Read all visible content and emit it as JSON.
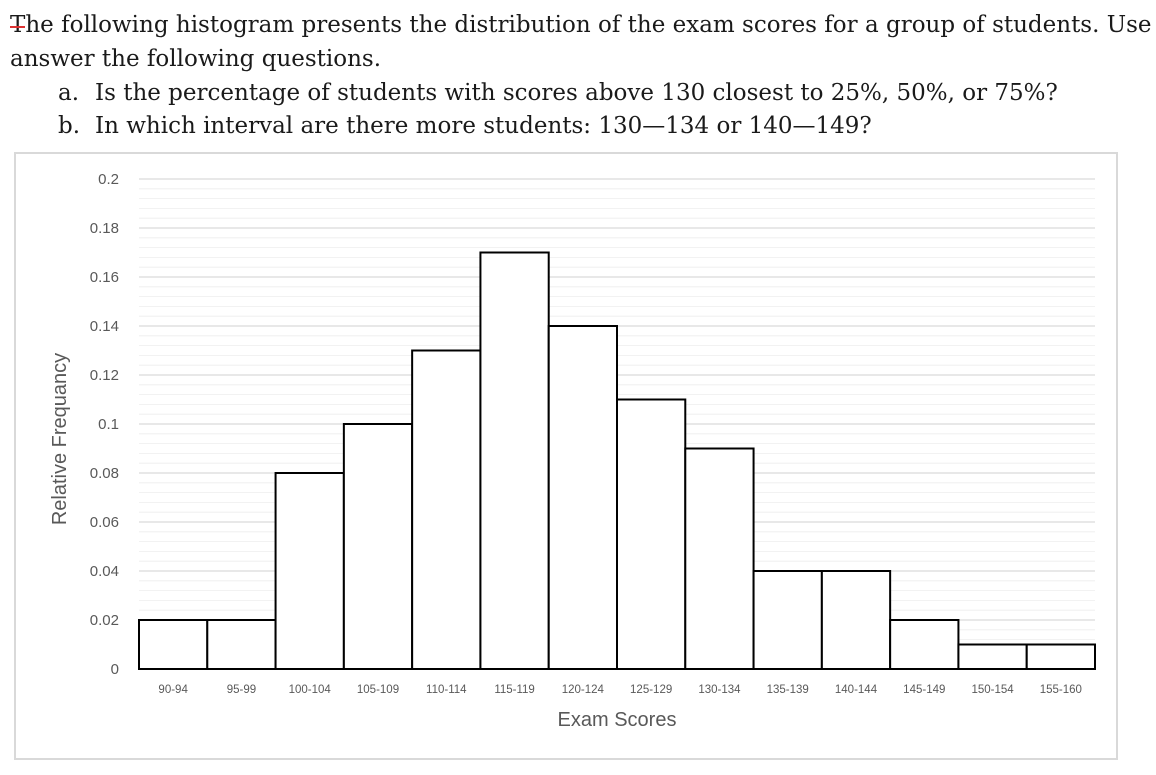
{
  "question": {
    "intro_first_char": "T",
    "intro_rest": "he following histogram presents the distribution of the exam scores for a group of  students. Use it to",
    "intro_line2": "answer the following questions.",
    "items": [
      {
        "marker": "a.",
        "text": "Is the percentage of students with scores above 130 closest to 25%, 50%, or 75%?"
      },
      {
        "marker": "b.",
        "text": "In which interval are there more students: 130—134 or 140—149?"
      }
    ]
  },
  "chart_data": {
    "type": "bar",
    "title": "",
    "xlabel": "Exam Scores",
    "ylabel": "Relative Frequancy",
    "categories": [
      "90-94",
      "95-99",
      "100-104",
      "105-109",
      "110-114",
      "115-119",
      "120-124",
      "125-129",
      "130-134",
      "135-139",
      "140-144",
      "145-149",
      "150-154",
      "155-160"
    ],
    "values": [
      0.02,
      0.02,
      0.08,
      0.1,
      0.13,
      0.17,
      0.14,
      0.11,
      0.09,
      0.04,
      0.04,
      0.02,
      0.01,
      0.01
    ],
    "ylim": [
      0,
      0.2
    ],
    "yticks": [
      "0",
      "0.02",
      "0.04",
      "0.06",
      "0.08",
      "0.1",
      "0.12",
      "0.14",
      "0.16",
      "0.18",
      "0.2"
    ],
    "grid": true,
    "legend": "none",
    "colors": {
      "bar_fill": "#ffffff",
      "bar_stroke": "#000000",
      "grid_major": "#d9d9d9",
      "grid_minor": "#eeeeee",
      "text": "#595959"
    }
  }
}
